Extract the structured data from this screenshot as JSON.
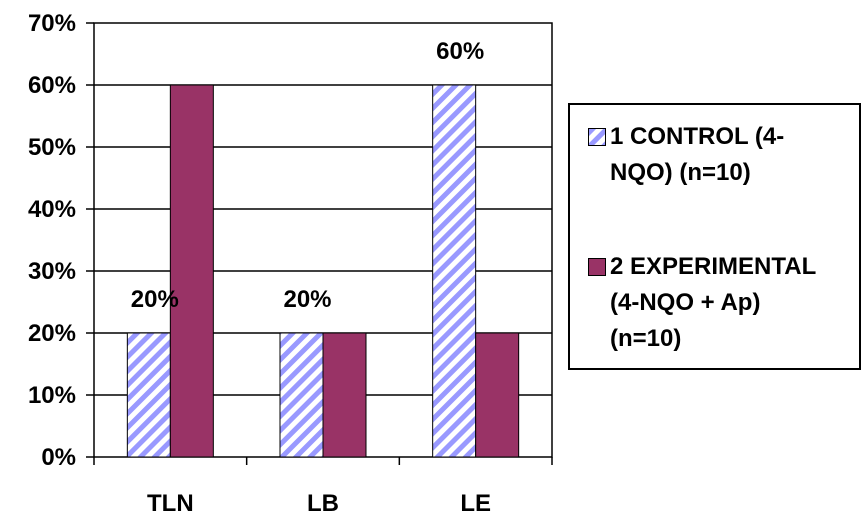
{
  "chart_data": {
    "type": "bar",
    "categories": [
      "TLN",
      "LB",
      "LE"
    ],
    "series": [
      {
        "name": "1 CONTROL  (4-NQO) (n=10)",
        "values": [
          20,
          20,
          60
        ],
        "pattern": "diagonal-stripes",
        "color": "#9999ff"
      },
      {
        "name": "2 EXPERIMENTAL (4-NQO + Ap) (n=10)",
        "values": [
          60,
          20,
          20
        ],
        "pattern": "solid",
        "color": "#993366"
      }
    ],
    "y_ticks": [
      "0%",
      "10%",
      "20%",
      "30%",
      "40%",
      "50%",
      "60%",
      "70%"
    ],
    "ylim": [
      0,
      70
    ],
    "y_unit": "%",
    "grid": "horizontal",
    "legend_position": "right",
    "data_labels": [
      {
        "category": "TLN",
        "series": "1 CONTROL  (4-NQO) (n=10)",
        "text": "20%"
      },
      {
        "category": "LB",
        "series": "1 CONTROL  (4-NQO) (n=10)",
        "text": "20%"
      },
      {
        "category": "LE",
        "series": "1 CONTROL  (4-NQO) (n=10)",
        "text": "60%"
      }
    ]
  },
  "legend": {
    "items": [
      {
        "label_line1": "1 CONTROL  (4-",
        "label_line2": "NQO) (n=10)",
        "label_line3": ""
      },
      {
        "label_line1": "2 EXPERIMENTAL",
        "label_line2": "(4-NQO + Ap)",
        "label_line3": "(n=10)"
      }
    ]
  }
}
